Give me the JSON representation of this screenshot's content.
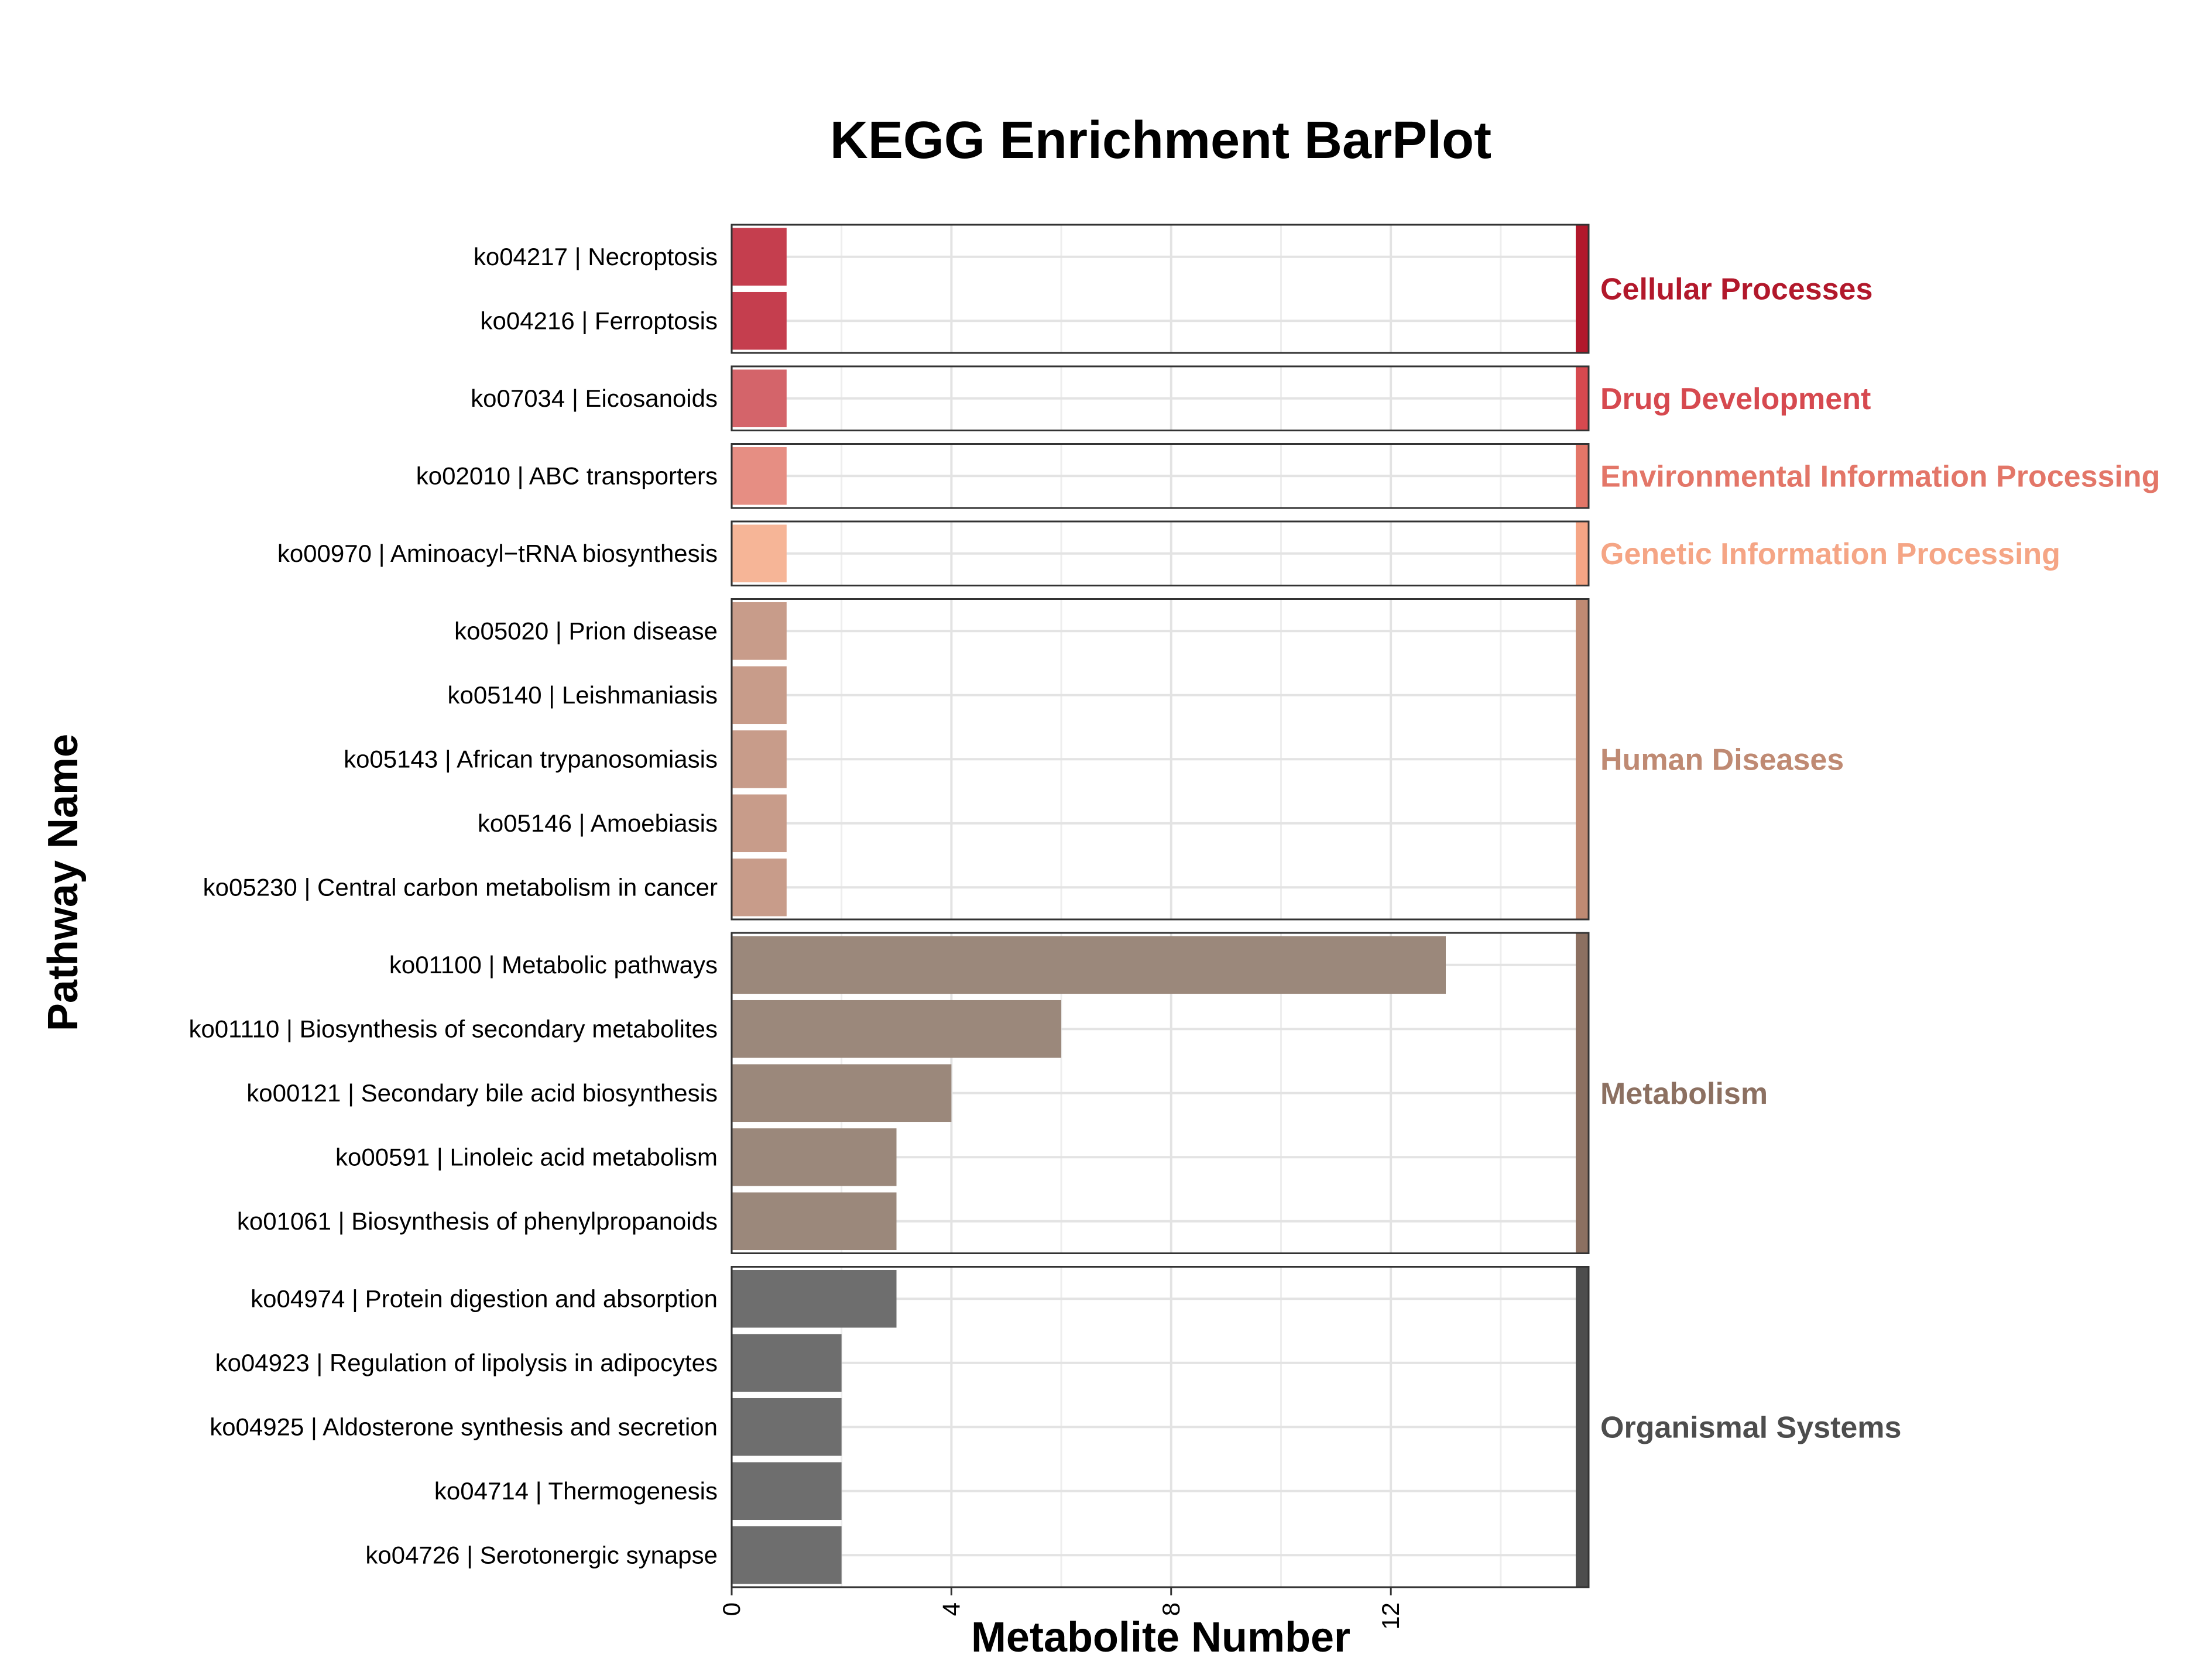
{
  "chart_data": {
    "type": "bar",
    "orientation": "horizontal",
    "title": "KEGG Enrichment BarPlot",
    "xlabel": "Metabolite Number",
    "ylabel": "Pathway Name",
    "xlim": [
      0,
      15.6
    ],
    "xticks": [
      0,
      4,
      8,
      12
    ],
    "xtick_labels": [
      "0",
      "4",
      "8",
      "12"
    ],
    "grid": true,
    "legend": "none",
    "groups": [
      {
        "name": "Cellular Processes",
        "color": "#B2182B",
        "bar_color": "#C53E4E",
        "pathways": [
          {
            "label": "ko04217 | Necroptosis",
            "value": 1
          },
          {
            "label": "ko04216 | Ferroptosis",
            "value": 1
          }
        ]
      },
      {
        "name": "Drug Development",
        "color": "#D6494F",
        "bar_color": "#D4646A",
        "pathways": [
          {
            "label": "ko07034 | Eicosanoids",
            "value": 1
          }
        ]
      },
      {
        "name": "Environmental Information Processing",
        "color": "#E37668",
        "bar_color": "#E68E83",
        "pathways": [
          {
            "label": "ko02010 | ABC transporters",
            "value": 1
          }
        ]
      },
      {
        "name": "Genetic Information Processing",
        "color": "#F5A585",
        "bar_color": "#F6B597",
        "pathways": [
          {
            "label": "ko00970 | Aminoacyl−tRNA biosynthesis",
            "value": 1
          }
        ]
      },
      {
        "name": "Human Diseases",
        "color": "#BF8A73",
        "bar_color": "#C89C8A",
        "pathways": [
          {
            "label": "ko05020 | Prion disease",
            "value": 1
          },
          {
            "label": "ko05140 | Leishmaniasis",
            "value": 1
          },
          {
            "label": "ko05143 | African trypanosomiasis",
            "value": 1
          },
          {
            "label": "ko05146 | Amoebiasis",
            "value": 1
          },
          {
            "label": "ko05230 | Central carbon metabolism in cancer",
            "value": 1
          }
        ]
      },
      {
        "name": "Metabolism",
        "color": "#8C7061",
        "bar_color": "#9B887B",
        "pathways": [
          {
            "label": "ko01100 | Metabolic pathways",
            "value": 13
          },
          {
            "label": "ko01110 | Biosynthesis of secondary metabolites",
            "value": 6
          },
          {
            "label": "ko00121 | Secondary bile acid biosynthesis",
            "value": 4
          },
          {
            "label": "ko00591 | Linoleic acid metabolism",
            "value": 3
          },
          {
            "label": "ko01061 | Biosynthesis of phenylpropanoids",
            "value": 3
          }
        ]
      },
      {
        "name": "Organismal Systems",
        "color": "#4D4D4D",
        "bar_color": "#6E6E6E",
        "pathways": [
          {
            "label": "ko04974 | Protein digestion and absorption",
            "value": 3
          },
          {
            "label": "ko04923 | Regulation of lipolysis in adipocytes",
            "value": 2
          },
          {
            "label": "ko04925 | Aldosterone synthesis and secretion",
            "value": 2
          },
          {
            "label": "ko04714 | Thermogenesis",
            "value": 2
          },
          {
            "label": "ko04726 | Serotonergic synapse",
            "value": 2
          }
        ]
      }
    ]
  }
}
